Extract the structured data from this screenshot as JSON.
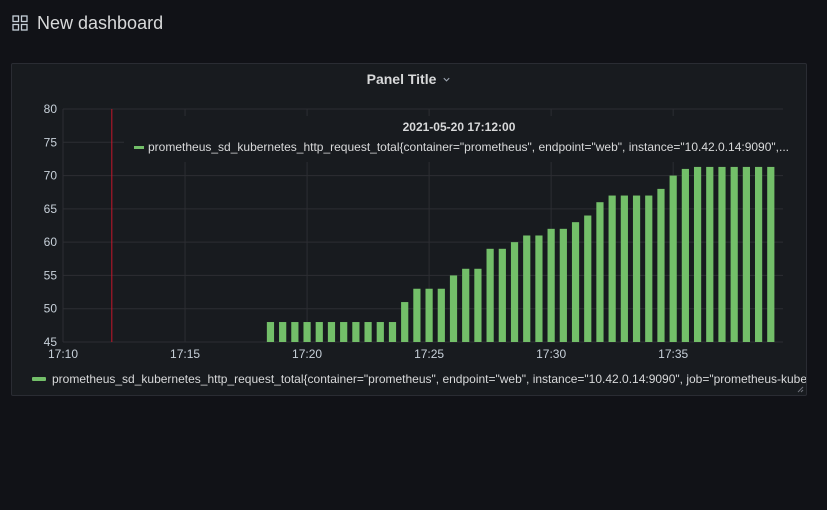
{
  "dashboard": {
    "title": "New dashboard"
  },
  "panel": {
    "title": "Panel Title",
    "tooltip": {
      "time": "2021-05-20 17:12:00",
      "series_label": "prometheus_sd_kubernetes_http_request_total{container=\"prometheus\", endpoint=\"web\", instance=\"10.42.0.14:9090\",..."
    },
    "legend": {
      "label": "prometheus_sd_kubernetes_http_request_total{container=\"prometheus\", endpoint=\"web\", instance=\"10.42.0.14:9090\", job=\"prometheus-kube"
    }
  },
  "colors": {
    "series": "#73bf69",
    "crosshair": "#c4162a",
    "grid": "#2c2e33"
  },
  "chart_data": {
    "type": "bar",
    "xlabel": "",
    "ylabel": "",
    "ylim": [
      45,
      80
    ],
    "yticks": [
      45,
      50,
      55,
      60,
      65,
      70,
      75,
      80
    ],
    "xticks": [
      "17:10",
      "17:15",
      "17:20",
      "17:25",
      "17:30",
      "17:35"
    ],
    "xlim_minutes": [
      0,
      29.5
    ],
    "hover_minute": 2,
    "grid": true,
    "legend_position": "bottom",
    "series": [
      {
        "name": "prometheus_sd_kubernetes_http_request_total{container=\"prometheus\", endpoint=\"web\", instance=\"10.42.0.14:9090\", job=\"prometheus-kube",
        "x": [
          "17:18:30",
          "17:19",
          "17:19:30",
          "17:20",
          "17:20:30",
          "17:21",
          "17:21:30",
          "17:22",
          "17:22:30",
          "17:23",
          "17:23:30",
          "17:24",
          "17:24:30",
          "17:25",
          "17:25:30",
          "17:26",
          "17:26:30",
          "17:27",
          "17:27:30",
          "17:28",
          "17:28:30",
          "17:29",
          "17:29:30",
          "17:30",
          "17:30:30",
          "17:31",
          "17:31:30",
          "17:32",
          "17:32:30",
          "17:33",
          "17:33:30",
          "17:34",
          "17:34:30",
          "17:35",
          "17:35:30",
          "17:36",
          "17:36:30",
          "17:37",
          "17:37:30",
          "17:38",
          "17:38:30",
          "17:39"
        ],
        "values": [
          48,
          48,
          48,
          48,
          48,
          48,
          48,
          48,
          48,
          48,
          48,
          51,
          53,
          53,
          53,
          55,
          56,
          56,
          59,
          59,
          60,
          61,
          61,
          62,
          62,
          63,
          64,
          66,
          67,
          67,
          67,
          67,
          68,
          70,
          71,
          71.3,
          71.3,
          71.3,
          71.3,
          71.3,
          71.3,
          71.3
        ]
      }
    ]
  }
}
